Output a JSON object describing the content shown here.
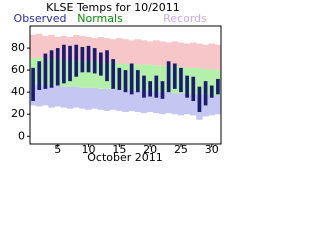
{
  "chart_data": {
    "type": "range-bar",
    "title": "KLSE Temps for 10/2011",
    "x_label": "October 2011",
    "x": [
      1,
      2,
      3,
      4,
      5,
      6,
      7,
      8,
      9,
      10,
      11,
      12,
      13,
      14,
      15,
      16,
      17,
      18,
      19,
      20,
      21,
      22,
      23,
      24,
      25,
      26,
      27,
      28,
      29,
      30,
      31
    ],
    "xlim": [
      0.5,
      31.5
    ],
    "xticks": [
      5,
      10,
      15,
      20,
      25,
      30
    ],
    "ylim": [
      -7,
      100
    ],
    "yticks": [
      0,
      20,
      40,
      60,
      80
    ],
    "series": [
      {
        "name": "Observed",
        "color": "#1c1c6e",
        "label_color": "#2a2aa8",
        "high": [
          62,
          68,
          75,
          78,
          80,
          83,
          82,
          83,
          81,
          82,
          80,
          76,
          78,
          70,
          62,
          60,
          66,
          60,
          55,
          50,
          55,
          50,
          68,
          66,
          62,
          55,
          54,
          45,
          50,
          46,
          52
        ],
        "low": [
          32,
          42,
          43,
          44,
          46,
          48,
          50,
          54,
          58,
          58,
          57,
          55,
          50,
          43,
          42,
          40,
          38,
          40,
          35,
          36,
          35,
          34,
          40,
          43,
          40,
          35,
          32,
          22,
          28,
          35,
          38
        ]
      },
      {
        "name": "Normals",
        "color": "#b4f0aa",
        "label_color": "#0a8a0a",
        "high": [
          71,
          71,
          70,
          70,
          70,
          69,
          69,
          69,
          68,
          68,
          68,
          67,
          67,
          67,
          66,
          66,
          66,
          65,
          65,
          65,
          64,
          64,
          64,
          63,
          63,
          62,
          62,
          62,
          61,
          61,
          60
        ],
        "low": [
          47,
          47,
          46,
          46,
          46,
          45,
          45,
          45,
          44,
          44,
          44,
          43,
          43,
          43,
          42,
          42,
          42,
          41,
          41,
          41,
          40,
          40,
          40,
          39,
          39,
          39,
          38,
          38,
          38,
          37,
          37
        ]
      },
      {
        "name": "Records",
        "color": "#f7c6c8",
        "low_color": "#c6c6f2",
        "label_color": "#c4aef2",
        "high": [
          92,
          93,
          91,
          92,
          90,
          91,
          90,
          92,
          91,
          90,
          89,
          90,
          89,
          88,
          89,
          88,
          87,
          88,
          87,
          86,
          87,
          86,
          85,
          86,
          85,
          84,
          85,
          84,
          83,
          84,
          83
        ],
        "low": [
          28,
          27,
          28,
          26,
          27,
          26,
          25,
          26,
          25,
          24,
          25,
          24,
          23,
          24,
          23,
          22,
          23,
          22,
          21,
          22,
          21,
          20,
          21,
          20,
          19,
          20,
          19,
          15,
          18,
          19,
          20
        ]
      }
    ]
  }
}
